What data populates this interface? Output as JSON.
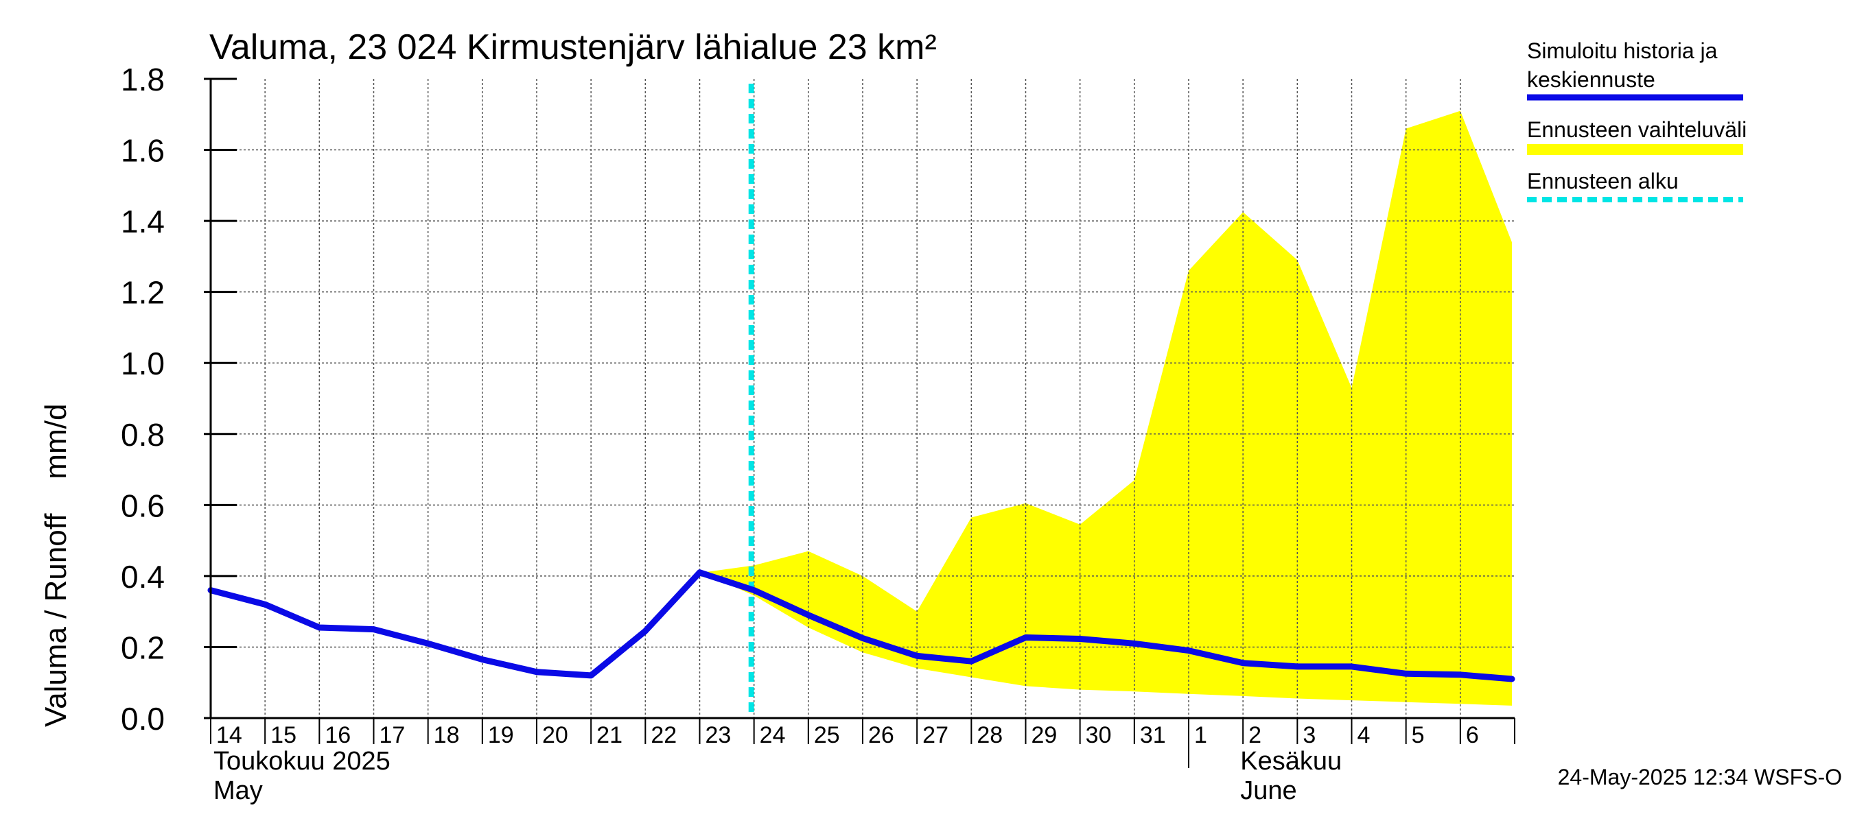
{
  "chart_data": {
    "type": "area",
    "title": "Valuma, 23 024 Kirmustenjärv lähialue 23 km²",
    "ylabel_fi": "Valuma / Runoff",
    "ylabel_unit": "mm/d",
    "ylim": [
      0,
      1.8
    ],
    "yticks": [
      "0.0",
      "0.2",
      "0.4",
      "0.6",
      "0.8",
      "1.0",
      "1.2",
      "1.4",
      "1.6",
      "1.8"
    ],
    "grid": true,
    "x_labels": [
      "14",
      "15",
      "16",
      "17",
      "18",
      "19",
      "20",
      "21",
      "22",
      "23",
      "24",
      "25",
      "26",
      "27",
      "28",
      "29",
      "30",
      "31",
      "1",
      "2",
      "3",
      "4",
      "5",
      "6"
    ],
    "month_labels": {
      "may_fi": "Toukokuu  2025",
      "may_en": "May",
      "june_fi": "Kesäkuu",
      "june_en": "June"
    },
    "forecast_start_day": 23.95,
    "series": [
      {
        "name": "Simuloitu historia ja keskiennuste",
        "color": "#0a0ae6",
        "x": [
          14,
          15,
          16,
          17,
          18,
          19,
          20,
          21,
          22,
          23,
          24,
          25,
          26,
          27,
          28,
          29,
          30,
          31,
          32,
          33,
          34,
          35,
          36,
          37,
          37.95
        ],
        "values": [
          0.36,
          0.32,
          0.255,
          0.25,
          0.21,
          0.165,
          0.13,
          0.12,
          0.245,
          0.41,
          0.36,
          0.29,
          0.225,
          0.175,
          0.16,
          0.227,
          0.223,
          0.21,
          0.19,
          0.155,
          0.145,
          0.145,
          0.125,
          0.122,
          0.11
        ]
      }
    ],
    "band": {
      "name": "Ennusteen vaihteluväli",
      "color": "#ffff00",
      "x": [
        23.05,
        24,
        25,
        26,
        27,
        28,
        29,
        30,
        31,
        32,
        33,
        34,
        35,
        36,
        37,
        37.95
      ],
      "upper": [
        0.41,
        0.43,
        0.47,
        0.4,
        0.3,
        0.565,
        0.605,
        0.545,
        0.67,
        1.26,
        1.425,
        1.29,
        0.93,
        1.66,
        1.71,
        1.34
      ],
      "lower": [
        0.41,
        0.345,
        0.255,
        0.185,
        0.14,
        0.115,
        0.09,
        0.08,
        0.075,
        0.068,
        0.062,
        0.055,
        0.05,
        0.045,
        0.04,
        0.035
      ]
    },
    "legend": [
      {
        "label_line1": "Simuloitu historia ja",
        "label_line2": "keskiennuste",
        "color": "#0a0ae6",
        "style": "solid"
      },
      {
        "label_line1": "Ennusteen vaihteluväli",
        "label_line2": "",
        "color": "#ffff00",
        "style": "band"
      },
      {
        "label_line1": "Ennusteen alku",
        "label_line2": "",
        "color": "#00e5e5",
        "style": "dashed"
      }
    ],
    "timestamp": "24-May-2025 12:34 WSFS-O"
  }
}
